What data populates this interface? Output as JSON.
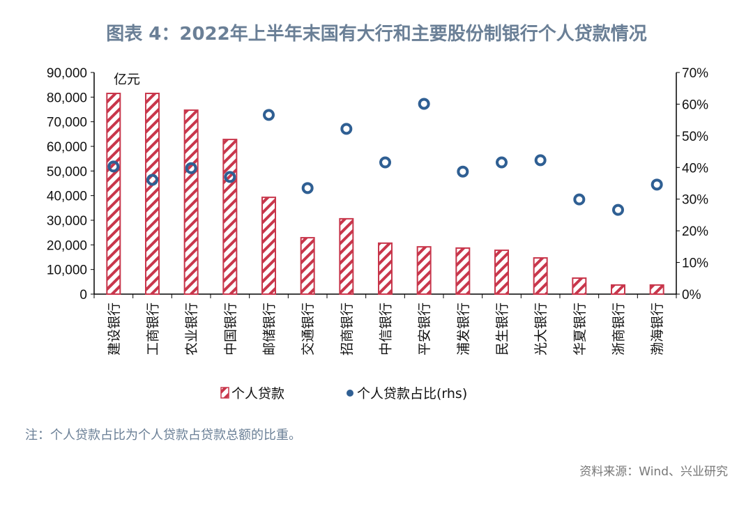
{
  "title": "图表 4：2022年上半年末国有大行和主要股份制银行个人贷款情况",
  "note": "注：个人贷款占比为个人贷款占贷款总额的比重。",
  "source": "资料来源：Wind、兴业研究",
  "chart_data": {
    "type": "bar+scatter",
    "unit_label": "亿元",
    "categories": [
      "建设银行",
      "工商银行",
      "农业银行",
      "中国银行",
      "邮储银行",
      "交通银行",
      "招商银行",
      "中信银行",
      "平安银行",
      "浦发银行",
      "民生银行",
      "光大银行",
      "华夏银行",
      "浙商银行",
      "渤海银行"
    ],
    "series": [
      {
        "name": "个人贷款",
        "type": "bar",
        "axis": "left",
        "color": "#c8364b",
        "values": [
          81500,
          81500,
          74700,
          62800,
          39300,
          22900,
          30600,
          20700,
          19200,
          18700,
          17800,
          14700,
          6500,
          3700,
          3700
        ]
      },
      {
        "name": "个人贷款占比(rhs)",
        "type": "scatter",
        "axis": "right",
        "color": "#2f5f93",
        "values": [
          40.3,
          36.1,
          39.8,
          37.0,
          56.6,
          33.5,
          52.2,
          41.6,
          60.1,
          38.7,
          41.6,
          42.3,
          29.9,
          26.6,
          34.6
        ]
      }
    ],
    "ylim_left": [
      0,
      90000
    ],
    "yticks_left": [
      "0",
      "10,000",
      "20,000",
      "30,000",
      "40,000",
      "50,000",
      "60,000",
      "70,000",
      "80,000",
      "90,000"
    ],
    "ylim_right": [
      0,
      70
    ],
    "yticks_right": [
      "0%",
      "10%",
      "20%",
      "30%",
      "40%",
      "50%",
      "60%",
      "70%"
    ],
    "grid": false,
    "legend_position": "bottom"
  }
}
